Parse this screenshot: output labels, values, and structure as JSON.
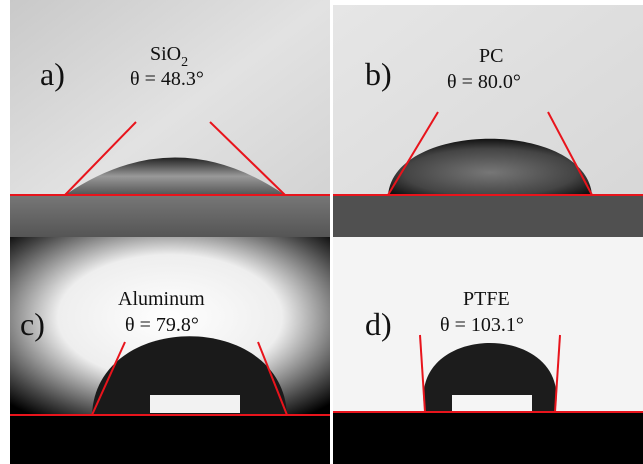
{
  "panels": [
    {
      "label": "a)",
      "material": "SiO",
      "material_sub": "2",
      "angle": "θ = 48.3°"
    },
    {
      "label": "b)",
      "material": "PC",
      "angle": "θ = 80.0°"
    },
    {
      "label": "c)",
      "material": "Aluminum",
      "angle": "θ = 79.8°"
    },
    {
      "label": "d)",
      "material": "PTFE",
      "angle": "θ = 103.1°"
    }
  ]
}
